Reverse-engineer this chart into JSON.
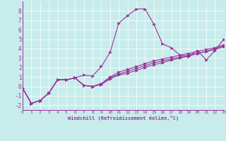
{
  "xlabel": "Windchill (Refroidissement éolien,°C)",
  "bg_color": "#c8ecec",
  "line_color": "#993399",
  "xlim": [
    0,
    23
  ],
  "ylim": [
    -2.5,
    9
  ],
  "xticks": [
    0,
    1,
    2,
    3,
    4,
    5,
    6,
    7,
    8,
    9,
    10,
    11,
    12,
    13,
    14,
    15,
    16,
    17,
    18,
    19,
    20,
    21,
    22,
    23
  ],
  "yticks": [
    -2,
    -1,
    0,
    1,
    2,
    3,
    4,
    5,
    6,
    7,
    8
  ],
  "main_x": [
    0,
    1,
    2,
    3,
    4,
    5,
    6,
    7,
    8,
    9,
    10,
    11,
    12,
    13,
    14,
    15,
    16,
    17,
    18,
    19,
    20,
    21,
    22,
    23
  ],
  "main_y": [
    -0.2,
    -1.8,
    -1.5,
    -0.7,
    0.7,
    0.7,
    0.9,
    1.2,
    1.1,
    2.1,
    3.6,
    6.7,
    7.5,
    8.2,
    8.2,
    6.6,
    4.5,
    4.1,
    3.3,
    3.2,
    3.8,
    2.8,
    3.8,
    5.0
  ],
  "line2_x": [
    0,
    1,
    2,
    3,
    4,
    5,
    6,
    7,
    8,
    9,
    10,
    11,
    12,
    13,
    14,
    15,
    16,
    17,
    18,
    19,
    20,
    21,
    22,
    23
  ],
  "line2_y": [
    -0.2,
    -1.8,
    -1.5,
    -0.7,
    0.7,
    0.7,
    0.9,
    0.1,
    0.0,
    0.2,
    0.8,
    1.2,
    1.4,
    1.7,
    2.0,
    2.3,
    2.5,
    2.8,
    3.0,
    3.2,
    3.5,
    3.7,
    3.9,
    4.2
  ],
  "line3_x": [
    0,
    1,
    2,
    3,
    4,
    5,
    6,
    7,
    8,
    9,
    10,
    11,
    12,
    13,
    14,
    15,
    16,
    17,
    18,
    19,
    20,
    21,
    22,
    23
  ],
  "line3_y": [
    -0.2,
    -1.8,
    -1.5,
    -0.7,
    0.7,
    0.7,
    0.9,
    0.1,
    0.0,
    0.2,
    0.9,
    1.3,
    1.6,
    1.9,
    2.2,
    2.5,
    2.7,
    2.9,
    3.1,
    3.3,
    3.5,
    3.7,
    4.0,
    4.3
  ],
  "line4_x": [
    0,
    1,
    2,
    3,
    4,
    5,
    6,
    7,
    8,
    9,
    10,
    11,
    12,
    13,
    14,
    15,
    16,
    17,
    18,
    19,
    20,
    21,
    22,
    23
  ],
  "line4_y": [
    -0.2,
    -1.8,
    -1.5,
    -0.7,
    0.7,
    0.7,
    0.9,
    0.1,
    0.0,
    0.3,
    1.0,
    1.5,
    1.8,
    2.1,
    2.4,
    2.7,
    2.9,
    3.1,
    3.3,
    3.5,
    3.7,
    3.9,
    4.1,
    4.4
  ],
  "xtick_fontsize": 4.5,
  "ytick_fontsize": 5.5,
  "xlabel_fontsize": 5.0
}
